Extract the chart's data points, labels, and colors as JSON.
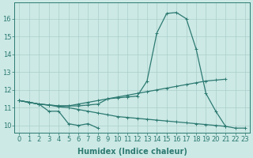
{
  "title": "",
  "xlabel": "Humidex (Indice chaleur)",
  "background_color": "#cce9e5",
  "grid_color": "#aacfcb",
  "line_color": "#2d7a72",
  "x": [
    0,
    1,
    2,
    3,
    4,
    5,
    6,
    7,
    8,
    9,
    10,
    11,
    12,
    13,
    14,
    15,
    16,
    17,
    18,
    19,
    20,
    21,
    22,
    23
  ],
  "series": {
    "line1": [
      11.4,
      11.3,
      11.2,
      10.8,
      10.8,
      10.1,
      10.0,
      10.1,
      9.85,
      null,
      null,
      null,
      null,
      null,
      null,
      null,
      null,
      null,
      null,
      null,
      null,
      null,
      null,
      null
    ],
    "line2": [
      11.4,
      11.3,
      11.2,
      11.15,
      11.1,
      11.1,
      11.1,
      11.15,
      11.2,
      11.5,
      11.55,
      11.6,
      11.65,
      12.5,
      15.2,
      16.3,
      16.35,
      16.0,
      14.3,
      11.8,
      10.8,
      9.95,
      9.85,
      9.85
    ],
    "line3": [
      11.4,
      11.3,
      11.2,
      11.15,
      11.1,
      11.1,
      11.2,
      11.3,
      11.4,
      11.5,
      11.6,
      11.7,
      11.8,
      11.9,
      12.0,
      12.1,
      12.2,
      12.3,
      12.4,
      12.5,
      12.55,
      12.6,
      null,
      null
    ],
    "line4": [
      11.4,
      11.3,
      11.2,
      11.15,
      11.05,
      11.0,
      10.9,
      10.8,
      10.7,
      10.6,
      10.5,
      10.45,
      10.4,
      10.35,
      10.3,
      10.25,
      10.2,
      10.15,
      10.1,
      10.05,
      10.0,
      9.95,
      null,
      null
    ]
  },
  "ylim": [
    9.6,
    16.9
  ],
  "yticks": [
    10,
    11,
    12,
    13,
    14,
    15,
    16
  ],
  "xticks": [
    0,
    1,
    2,
    3,
    4,
    5,
    6,
    7,
    8,
    9,
    10,
    11,
    12,
    13,
    14,
    15,
    16,
    17,
    18,
    19,
    20,
    21,
    22,
    23
  ],
  "marker": "+",
  "markersize": 3,
  "linewidth": 0.9,
  "tick_fontsize": 6,
  "xlabel_fontsize": 7
}
